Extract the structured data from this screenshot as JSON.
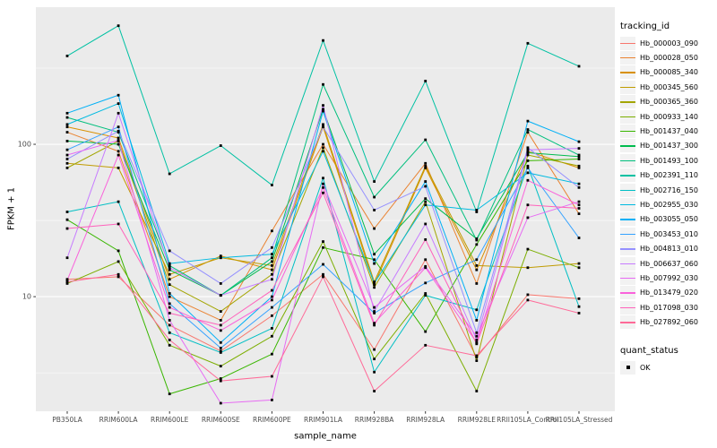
{
  "chart_data": {
    "type": "line",
    "title": "",
    "xlabel": "sample_name",
    "ylabel": "FPKM + 1",
    "y_scale": "log10",
    "ylim": [
      1.77,
      794
    ],
    "y_ticks": [
      100,
      10
    ],
    "y_tick_labels": [
      "100",
      "10"
    ],
    "y_minor_ticks": [
      316.23,
      31.62,
      3.162
    ],
    "grid": true,
    "legend_position": "right",
    "marker": "black-square",
    "panel_color": "#EBEBEB",
    "grid_color": "#FFFFFF",
    "tick_text_color": "#4D4D4D",
    "categories": [
      "PB350LA",
      "RRIM600LA",
      "RRIM600LE",
      "RRIM600SE",
      "RRIM600PE",
      "RRIM901LA",
      "RRIM928BA",
      "RRIM928LA",
      "RRIM928LE",
      "RRII105LA_Control",
      "RRII105LA_Stressed"
    ],
    "series": [
      {
        "name": "Hb_000003_090",
        "color": "#F8766D",
        "values": [
          13,
          13.5,
          6.5,
          4.4,
          7.5,
          14,
          4.5,
          17.5,
          4.0,
          10.3,
          9.7
        ]
      },
      {
        "name": "Hb_000028_050",
        "color": "#EA8331",
        "values": [
          120,
          90,
          10,
          7,
          27,
          100,
          28,
          75,
          12.2,
          120,
          35
        ]
      },
      {
        "name": "Hb_000085_340",
        "color": "#D89000",
        "values": [
          130,
          110,
          13,
          18.5,
          15,
          130,
          12,
          70,
          15,
          90,
          70
        ]
      },
      {
        "name": "Hb_000345_560",
        "color": "#C09B00",
        "values": [
          75,
          70,
          14,
          18,
          16,
          135,
          12.5,
          72,
          16,
          15.5,
          16.5
        ]
      },
      {
        "name": "Hb_000365_360",
        "color": "#A3A500",
        "values": [
          70,
          105,
          12,
          8,
          14,
          95,
          11.5,
          42,
          3.8,
          85,
          72
        ]
      },
      {
        "name": "Hb_000933_140",
        "color": "#7CAE00",
        "values": [
          12.2,
          17,
          4.8,
          3.5,
          5.5,
          23,
          3.9,
          10.5,
          2.4,
          20.5,
          15.5
        ]
      },
      {
        "name": "Hb_001437_040",
        "color": "#39B600",
        "values": [
          32,
          20,
          2.3,
          2.9,
          4.2,
          21,
          17.5,
          5.9,
          22,
          78,
          80
        ]
      },
      {
        "name": "Hb_001437_300",
        "color": "#00BB4E",
        "values": [
          105,
          100,
          15,
          10.2,
          17,
          170,
          19,
          44,
          24,
          88,
          83
        ]
      },
      {
        "name": "Hb_001493_100",
        "color": "#00BF7D",
        "values": [
          150,
          120,
          16,
          10.2,
          18,
          247,
          45,
          107,
          23.5,
          125,
          85
        ]
      },
      {
        "name": "Hb_002391_110",
        "color": "#00C1A3",
        "values": [
          380,
          600,
          64,
          98,
          54,
          480,
          57,
          260,
          36,
          460,
          325
        ]
      },
      {
        "name": "Hb_002716_150",
        "color": "#00BFC4",
        "values": [
          36,
          42,
          5.8,
          4.3,
          6.2,
          60,
          3.2,
          10.2,
          8.2,
          72,
          8.6
        ]
      },
      {
        "name": "Hb_002955_030",
        "color": "#00BAE0",
        "values": [
          135,
          185,
          16.5,
          18,
          19,
          90,
          12.3,
          40,
          37,
          65,
          55
        ]
      },
      {
        "name": "Hb_003055_050",
        "color": "#00B0F6",
        "values": [
          160,
          210,
          10.5,
          5,
          10,
          165,
          16.5,
          57,
          7,
          142,
          104
        ]
      },
      {
        "name": "Hb_003453_010",
        "color": "#35A2FF",
        "values": [
          92,
          130,
          9,
          4.6,
          8.5,
          16.3,
          7.8,
          12.3,
          17.5,
          70,
          24.3
        ]
      },
      {
        "name": "Hb_004813_010",
        "color": "#9590FF",
        "values": [
          80,
          122,
          20,
          12.2,
          21,
          130,
          37,
          53,
          5.8,
          95,
          52
        ]
      },
      {
        "name": "Hb_006637_060",
        "color": "#C77CFF",
        "values": [
          18,
          160,
          15.5,
          10.2,
          13,
          180,
          8,
          30,
          5.2,
          92,
          94
        ]
      },
      {
        "name": "Hb_007992_030",
        "color": "#E76BF3",
        "values": [
          85,
          106,
          7,
          2.0,
          2.1,
          55,
          8.5,
          15.8,
          5.5,
          33,
          42
        ]
      },
      {
        "name": "Hb_013479_020",
        "color": "#FA62DB",
        "values": [
          12.8,
          85,
          8.5,
          6,
          9.5,
          52,
          6.7,
          15.5,
          5.0,
          58,
          40
        ]
      },
      {
        "name": "Hb_017098_030",
        "color": "#FF62BC",
        "values": [
          28,
          30,
          7.8,
          6.5,
          11,
          48,
          6.5,
          23.7,
          4.9,
          40,
          38
        ]
      },
      {
        "name": "Hb_027892_060",
        "color": "#FF6A98",
        "values": [
          12.5,
          14,
          5.2,
          2.8,
          3.0,
          13.5,
          2.4,
          4.8,
          4.1,
          9.5,
          7.8
        ]
      }
    ]
  },
  "legend": {
    "tracking_title": "tracking_id",
    "quant_title": "quant_status",
    "quant_items": [
      {
        "label": "OK",
        "marker": "black-square"
      }
    ]
  }
}
